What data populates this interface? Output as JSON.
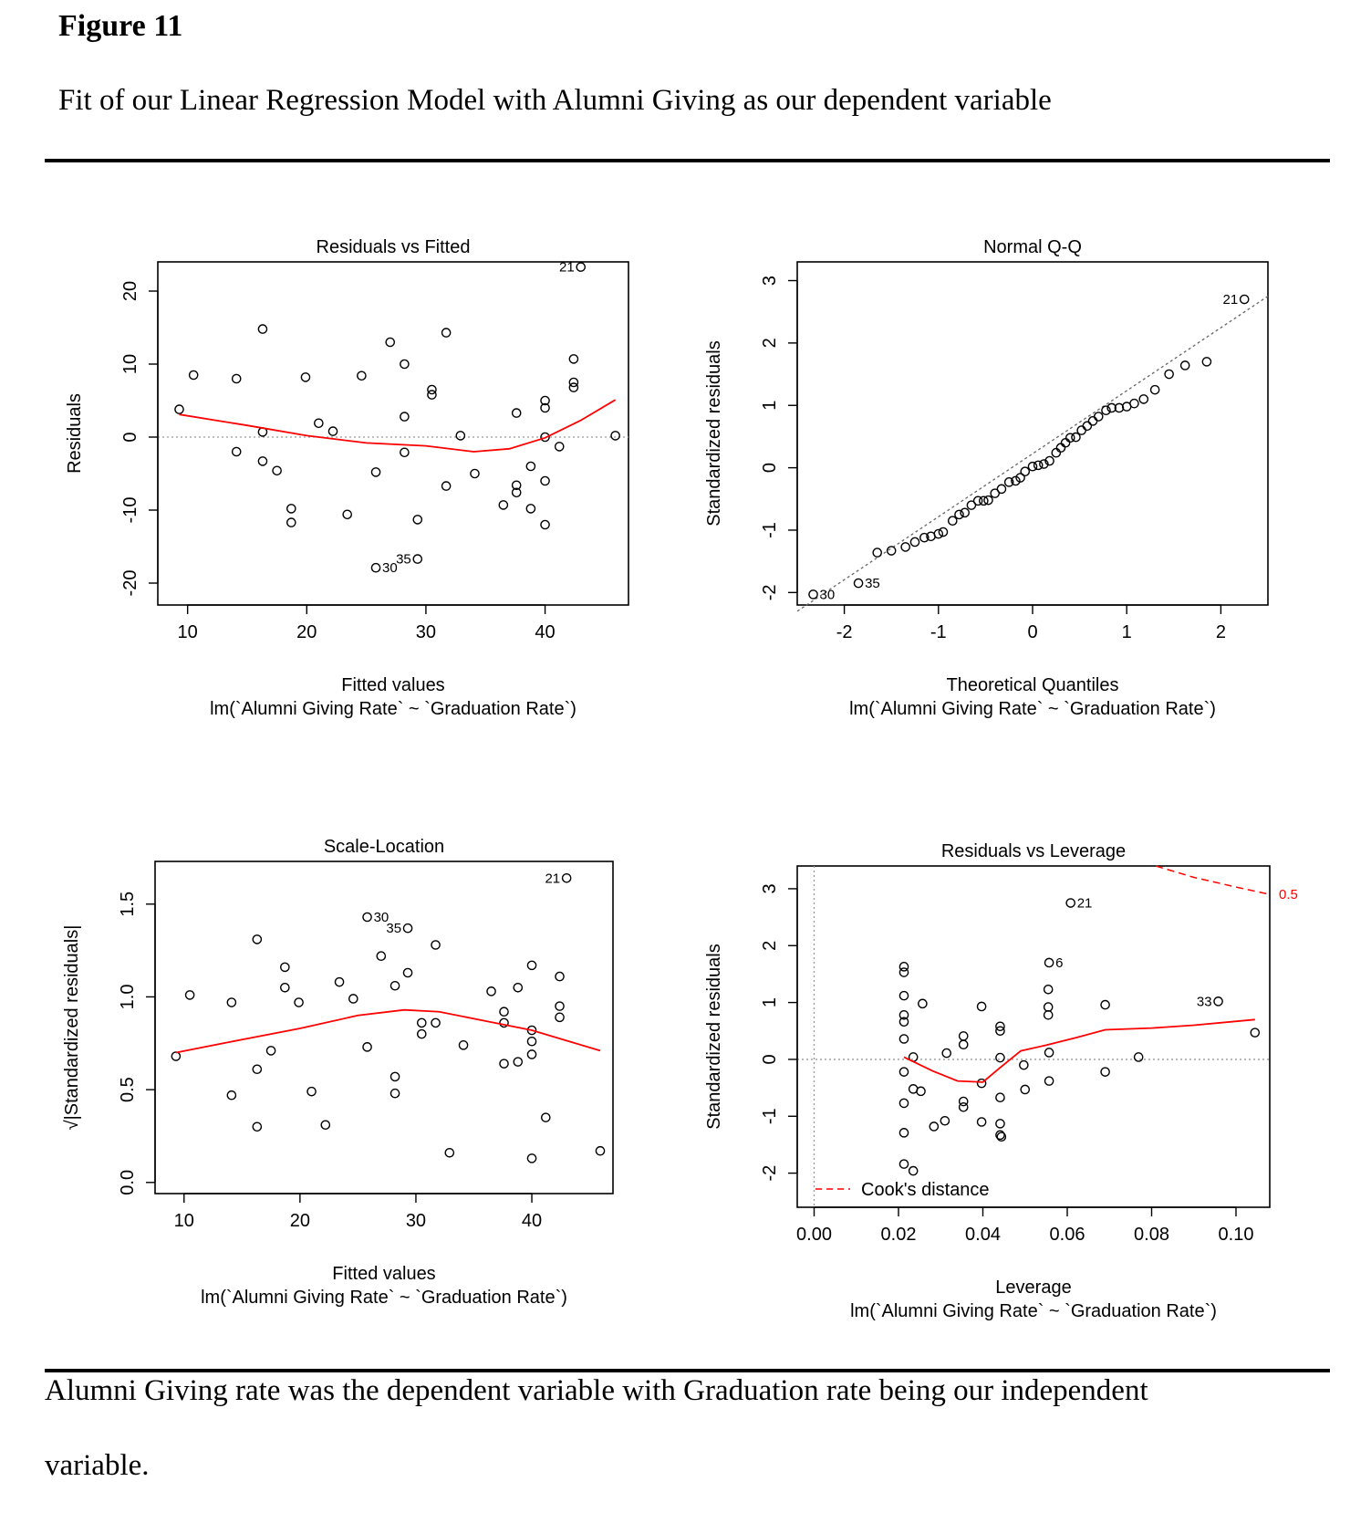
{
  "figure": {
    "label": "Figure 11",
    "caption": "Fit of our Linear Regression Model with Alumni Giving as our dependent variable",
    "note_line1": "Alumni Giving rate was the dependent variable with Graduation rate being our independent",
    "note_line2": "variable."
  },
  "colors": {
    "points": "#000000",
    "smooth": "#ff0000",
    "reference": "#999999",
    "cooks": "#ff0000"
  },
  "chart_data": [
    {
      "type": "scatter",
      "title": "Residuals vs Fitted",
      "xlabel": "Fitted values",
      "sublabel": "lm(`Alumni Giving Rate` ~ `Graduation Rate`)",
      "ylabel": "Residuals",
      "xlim": [
        7.5,
        47
      ],
      "ylim": [
        -23,
        24
      ],
      "xticks": [
        10,
        20,
        30,
        40
      ],
      "yticks": [
        -20,
        -10,
        0,
        10,
        20
      ],
      "points": [
        [
          9.3,
          3.8
        ],
        [
          10.5,
          8.5
        ],
        [
          14.1,
          -2
        ],
        [
          14.1,
          8
        ],
        [
          16.3,
          14.8
        ],
        [
          16.3,
          0.7
        ],
        [
          16.3,
          -3.3
        ],
        [
          17.5,
          -4.6
        ],
        [
          18.7,
          -9.8
        ],
        [
          18.7,
          -11.7
        ],
        [
          19.9,
          8.2
        ],
        [
          21,
          1.9
        ],
        [
          22.2,
          0.8
        ],
        [
          23.4,
          -10.6
        ],
        [
          24.6,
          8.4
        ],
        [
          25.8,
          -4.8
        ],
        [
          27,
          13
        ],
        [
          28.2,
          10
        ],
        [
          28.2,
          2.8
        ],
        [
          28.2,
          -2.1
        ],
        [
          29.3,
          -11.3
        ],
        [
          30.5,
          6.5
        ],
        [
          30.5,
          5.8
        ],
        [
          31.7,
          14.3
        ],
        [
          31.7,
          -6.7
        ],
        [
          32.9,
          0.2
        ],
        [
          34.1,
          -5
        ],
        [
          36.5,
          -9.3
        ],
        [
          37.6,
          3.3
        ],
        [
          37.6,
          -6.6
        ],
        [
          37.6,
          -7.6
        ],
        [
          38.8,
          -4
        ],
        [
          38.8,
          -9.8
        ],
        [
          40,
          5
        ],
        [
          40,
          4
        ],
        [
          40,
          0
        ],
        [
          40,
          -6
        ],
        [
          40,
          -12
        ],
        [
          41.2,
          -1.3
        ],
        [
          42.4,
          10.7
        ],
        [
          42.4,
          7.5
        ],
        [
          42.4,
          6.8
        ],
        [
          45.9,
          0.2
        ]
      ],
      "labeled_points": [
        {
          "x": 43,
          "y": 23.3,
          "text": "21"
        },
        {
          "x": 25.8,
          "y": -17.9,
          "text": "30"
        },
        {
          "x": 29.3,
          "y": -16.7,
          "text": "35"
        }
      ],
      "smooth": [
        [
          9.3,
          3.1
        ],
        [
          15,
          1.6
        ],
        [
          20,
          0.2
        ],
        [
          25,
          -0.8
        ],
        [
          30,
          -1.2
        ],
        [
          34,
          -2
        ],
        [
          37,
          -1.6
        ],
        [
          40,
          -0.1
        ],
        [
          43,
          2.3
        ],
        [
          45.9,
          5.1
        ]
      ],
      "refline": {
        "type": "h",
        "value": 0
      }
    },
    {
      "type": "scatter",
      "title": "Normal Q-Q",
      "xlabel": "Theoretical Quantiles",
      "sublabel": "lm(`Alumni Giving Rate` ~ `Graduation Rate`)",
      "ylabel": "Standardized residuals",
      "xlim": [
        -2.5,
        2.5
      ],
      "ylim": [
        -2.2,
        3.3
      ],
      "xticks": [
        -2,
        -1,
        0,
        1,
        2
      ],
      "yticks": [
        -2,
        -1,
        0,
        1,
        2,
        3
      ],
      "points": [
        [
          -1.65,
          -1.36
        ],
        [
          -1.5,
          -1.33
        ],
        [
          -1.35,
          -1.27
        ],
        [
          -1.25,
          -1.19
        ],
        [
          -1.15,
          -1.12
        ],
        [
          -1.08,
          -1.1
        ],
        [
          -1,
          -1.06
        ],
        [
          -0.95,
          -1.03
        ],
        [
          -0.85,
          -0.85
        ],
        [
          -0.78,
          -0.75
        ],
        [
          -0.72,
          -0.72
        ],
        [
          -0.65,
          -0.6
        ],
        [
          -0.58,
          -0.53
        ],
        [
          -0.52,
          -0.53
        ],
        [
          -0.47,
          -0.52
        ],
        [
          -0.4,
          -0.41
        ],
        [
          -0.33,
          -0.34
        ],
        [
          -0.25,
          -0.23
        ],
        [
          -0.18,
          -0.21
        ],
        [
          -0.13,
          -0.16
        ],
        [
          -0.08,
          -0.06
        ],
        [
          0,
          0.02
        ],
        [
          0.06,
          0.04
        ],
        [
          0.12,
          0.06
        ],
        [
          0.18,
          0.11
        ],
        [
          0.25,
          0.24
        ],
        [
          0.3,
          0.32
        ],
        [
          0.35,
          0.4
        ],
        [
          0.4,
          0.48
        ],
        [
          0.46,
          0.49
        ],
        [
          0.52,
          0.6
        ],
        [
          0.58,
          0.67
        ],
        [
          0.64,
          0.75
        ],
        [
          0.7,
          0.82
        ],
        [
          0.78,
          0.92
        ],
        [
          0.84,
          0.96
        ],
        [
          0.92,
          0.96
        ],
        [
          1,
          0.98
        ],
        [
          1.08,
          1.03
        ],
        [
          1.18,
          1.1
        ],
        [
          1.3,
          1.25
        ],
        [
          1.45,
          1.5
        ],
        [
          1.62,
          1.64
        ],
        [
          1.85,
          1.7
        ]
      ],
      "labeled_points": [
        {
          "x": -2.33,
          "y": -2.03,
          "text": "30"
        },
        {
          "x": -1.85,
          "y": -1.85,
          "text": "35"
        },
        {
          "x": 2.25,
          "y": 2.7,
          "text": "21"
        }
      ],
      "refline": {
        "type": "line",
        "from": [
          -2.5,
          -2.3
        ],
        "to": [
          2.5,
          2.75
        ]
      }
    },
    {
      "type": "scatter",
      "title": "Scale-Location",
      "xlabel": "Fitted values",
      "sublabel": "lm(`Alumni Giving Rate` ~ `Graduation Rate`)",
      "ylabel": "√|Standardized residuals|",
      "xlim": [
        7.5,
        47
      ],
      "ylim": [
        -0.06,
        1.73
      ],
      "xticks": [
        10,
        20,
        30,
        40
      ],
      "yticks": [
        0.0,
        0.5,
        1.0,
        1.5
      ],
      "ytick_labels": [
        "0.0",
        "0.5",
        "1.0",
        "1.5"
      ],
      "points": [
        [
          9.3,
          0.68
        ],
        [
          10.5,
          1.01
        ],
        [
          14.1,
          0.47
        ],
        [
          14.1,
          0.97
        ],
        [
          16.3,
          1.31
        ],
        [
          16.3,
          0.61
        ],
        [
          16.3,
          0.3
        ],
        [
          17.5,
          0.71
        ],
        [
          18.7,
          1.16
        ],
        [
          18.7,
          1.05
        ],
        [
          19.9,
          0.97
        ],
        [
          21,
          0.49
        ],
        [
          22.2,
          0.31
        ],
        [
          23.4,
          1.08
        ],
        [
          24.6,
          0.99
        ],
        [
          25.8,
          0.73
        ],
        [
          27,
          1.22
        ],
        [
          28.2,
          1.06
        ],
        [
          28.2,
          0.57
        ],
        [
          28.2,
          0.48
        ],
        [
          29.3,
          1.13
        ],
        [
          30.5,
          0.86
        ],
        [
          30.5,
          0.8
        ],
        [
          31.7,
          1.28
        ],
        [
          31.7,
          0.86
        ],
        [
          32.9,
          0.16
        ],
        [
          34.1,
          0.74
        ],
        [
          36.5,
          1.03
        ],
        [
          37.6,
          0.92
        ],
        [
          37.6,
          0.86
        ],
        [
          37.6,
          0.64
        ],
        [
          38.8,
          1.05
        ],
        [
          38.8,
          0.65
        ],
        [
          40,
          1.17
        ],
        [
          40,
          0.82
        ],
        [
          40,
          0.76
        ],
        [
          40,
          0.69
        ],
        [
          40,
          0.13
        ],
        [
          41.2,
          0.35
        ],
        [
          42.4,
          1.11
        ],
        [
          42.4,
          0.95
        ],
        [
          42.4,
          0.89
        ],
        [
          45.9,
          0.17
        ]
      ],
      "labeled_points": [
        {
          "x": 43,
          "y": 1.64,
          "text": "21"
        },
        {
          "x": 25.8,
          "y": 1.43,
          "text": "30"
        },
        {
          "x": 29.3,
          "y": 1.37,
          "text": "35"
        }
      ],
      "smooth": [
        [
          9.3,
          0.7
        ],
        [
          15,
          0.77
        ],
        [
          20,
          0.83
        ],
        [
          25,
          0.9
        ],
        [
          29,
          0.93
        ],
        [
          32,
          0.92
        ],
        [
          36,
          0.87
        ],
        [
          40,
          0.82
        ],
        [
          45.9,
          0.71
        ]
      ]
    },
    {
      "type": "scatter",
      "title": "Residuals vs Leverage",
      "xlabel": "Leverage",
      "sublabel": "lm(`Alumni Giving Rate` ~ `Graduation Rate`)",
      "ylabel": "Standardized residuals",
      "xlim": [
        -0.004,
        0.108
      ],
      "ylim": [
        -2.6,
        3.4
      ],
      "xticks": [
        0.0,
        0.02,
        0.04,
        0.06,
        0.08,
        0.1
      ],
      "xtick_labels": [
        "0.00",
        "0.02",
        "0.04",
        "0.06",
        "0.08",
        "0.10"
      ],
      "yticks": [
        -2,
        -1,
        0,
        1,
        2,
        3
      ],
      "points": [
        [
          0.0213,
          1.63
        ],
        [
          0.0213,
          1.53
        ],
        [
          0.0213,
          1.12
        ],
        [
          0.0213,
          0.78
        ],
        [
          0.0213,
          0.66
        ],
        [
          0.0213,
          0.36
        ],
        [
          0.0213,
          -0.22
        ],
        [
          0.0213,
          -0.77
        ],
        [
          0.0213,
          -1.29
        ],
        [
          0.0213,
          -1.84
        ],
        [
          0.0235,
          0.04
        ],
        [
          0.0235,
          -0.52
        ],
        [
          0.0235,
          -1.96
        ],
        [
          0.0253,
          -0.56
        ],
        [
          0.0257,
          0.98
        ],
        [
          0.0284,
          -1.18
        ],
        [
          0.031,
          -1.08
        ],
        [
          0.0314,
          0.11
        ],
        [
          0.0354,
          0.41
        ],
        [
          0.0354,
          0.26
        ],
        [
          0.0354,
          -0.74
        ],
        [
          0.0354,
          -0.84
        ],
        [
          0.0397,
          0.93
        ],
        [
          0.0397,
          -0.42
        ],
        [
          0.0397,
          -1.1
        ],
        [
          0.0441,
          0.58
        ],
        [
          0.0441,
          0.5
        ],
        [
          0.0441,
          0.03
        ],
        [
          0.0441,
          -0.67
        ],
        [
          0.0441,
          -1.13
        ],
        [
          0.0441,
          -1.33
        ],
        [
          0.0444,
          -1.36
        ],
        [
          0.0497,
          -0.1
        ],
        [
          0.05,
          -0.53
        ],
        [
          0.0555,
          1.23
        ],
        [
          0.0555,
          0.92
        ],
        [
          0.0555,
          0.78
        ],
        [
          0.0557,
          0.12
        ],
        [
          0.0557,
          -0.38
        ],
        [
          0.069,
          0.96
        ],
        [
          0.069,
          -0.22
        ],
        [
          0.0769,
          0.04
        ],
        [
          0.1045,
          0.47
        ]
      ],
      "labeled_points": [
        {
          "x": 0.0608,
          "y": 2.75,
          "text": "21"
        },
        {
          "x": 0.0557,
          "y": 1.7,
          "text": "6"
        },
        {
          "x": 0.0958,
          "y": 1.02,
          "text": "33"
        }
      ],
      "smooth": [
        [
          0.0213,
          0.04
        ],
        [
          0.028,
          -0.2
        ],
        [
          0.034,
          -0.38
        ],
        [
          0.04,
          -0.4
        ],
        [
          0.044,
          -0.15
        ],
        [
          0.049,
          0.15
        ],
        [
          0.055,
          0.25
        ],
        [
          0.062,
          0.38
        ],
        [
          0.069,
          0.52
        ],
        [
          0.08,
          0.55
        ],
        [
          0.09,
          0.6
        ],
        [
          0.1045,
          0.7
        ]
      ],
      "cooks_distance": {
        "label": "0.5",
        "curve": [
          [
            0.081,
            3.4
          ],
          [
            0.09,
            3.2
          ],
          [
            0.1,
            3.03
          ],
          [
            0.108,
            2.9
          ]
        ]
      },
      "legend": {
        "text": "Cook's distance",
        "position": "bottom-left"
      }
    }
  ]
}
